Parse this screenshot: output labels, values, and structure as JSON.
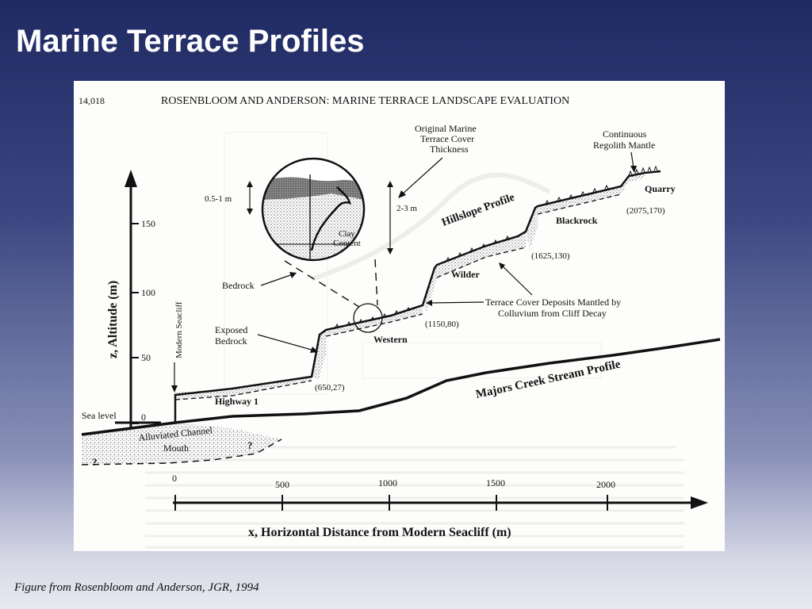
{
  "slide": {
    "title": "Marine Terrace Profiles",
    "caption": "Figure from Rosenbloom and Anderson, JGR, 1994"
  },
  "figure": {
    "page_number": "14,018",
    "running_header": "ROSENBLOOM AND ANDERSON:  MARINE TERRACE LANDSCAPE EVALUATION",
    "y_axis": {
      "label": "z, Altitude (m)",
      "ticks": [
        "150",
        "100",
        "50",
        "0"
      ],
      "sea_level_label": "Sea level"
    },
    "x_axis": {
      "label": "x, Horizontal Distance from Modern Seacliff (m)",
      "ticks": [
        "0",
        "500",
        "1000",
        "1500",
        "2000"
      ]
    },
    "inset": {
      "thickness_left": "0.5-1 m",
      "thickness_right": "2-3 m",
      "clay_label_line1": "Clay",
      "clay_label_line2": "Content"
    },
    "labels": {
      "original_cover_1": "Original Marine",
      "original_cover_2": "Terrace Cover",
      "original_cover_3": "Thickness",
      "regolith_1": "Continuous",
      "regolith_2": "Regolith Mantle",
      "quarry": "Quarry",
      "hillslope_profile": "Hillslope Profile",
      "blackrock": "Blackrock",
      "wilder": "Wilder",
      "western": "Western",
      "highway": "Highway 1",
      "bedrock": "Bedrock",
      "exposed_bedrock_1": "Exposed",
      "exposed_bedrock_2": "Bedrock",
      "modern_seacliff": "Modern Seacliff",
      "terrace_cover_1": "Terrace Cover Deposits Mantled by",
      "terrace_cover_2": "Colluvium from Cliff Decay",
      "stream_profile": "Majors Creek Stream Profile",
      "alluviated_1": "Alluviated Channel",
      "alluviated_2": "Mouth",
      "unknown_1": "?",
      "unknown_2": "?"
    },
    "points": {
      "p1": "(650,27)",
      "p2": "(1150,80)",
      "p3": "(1625,130)",
      "p4": "(2075,170)"
    }
  }
}
